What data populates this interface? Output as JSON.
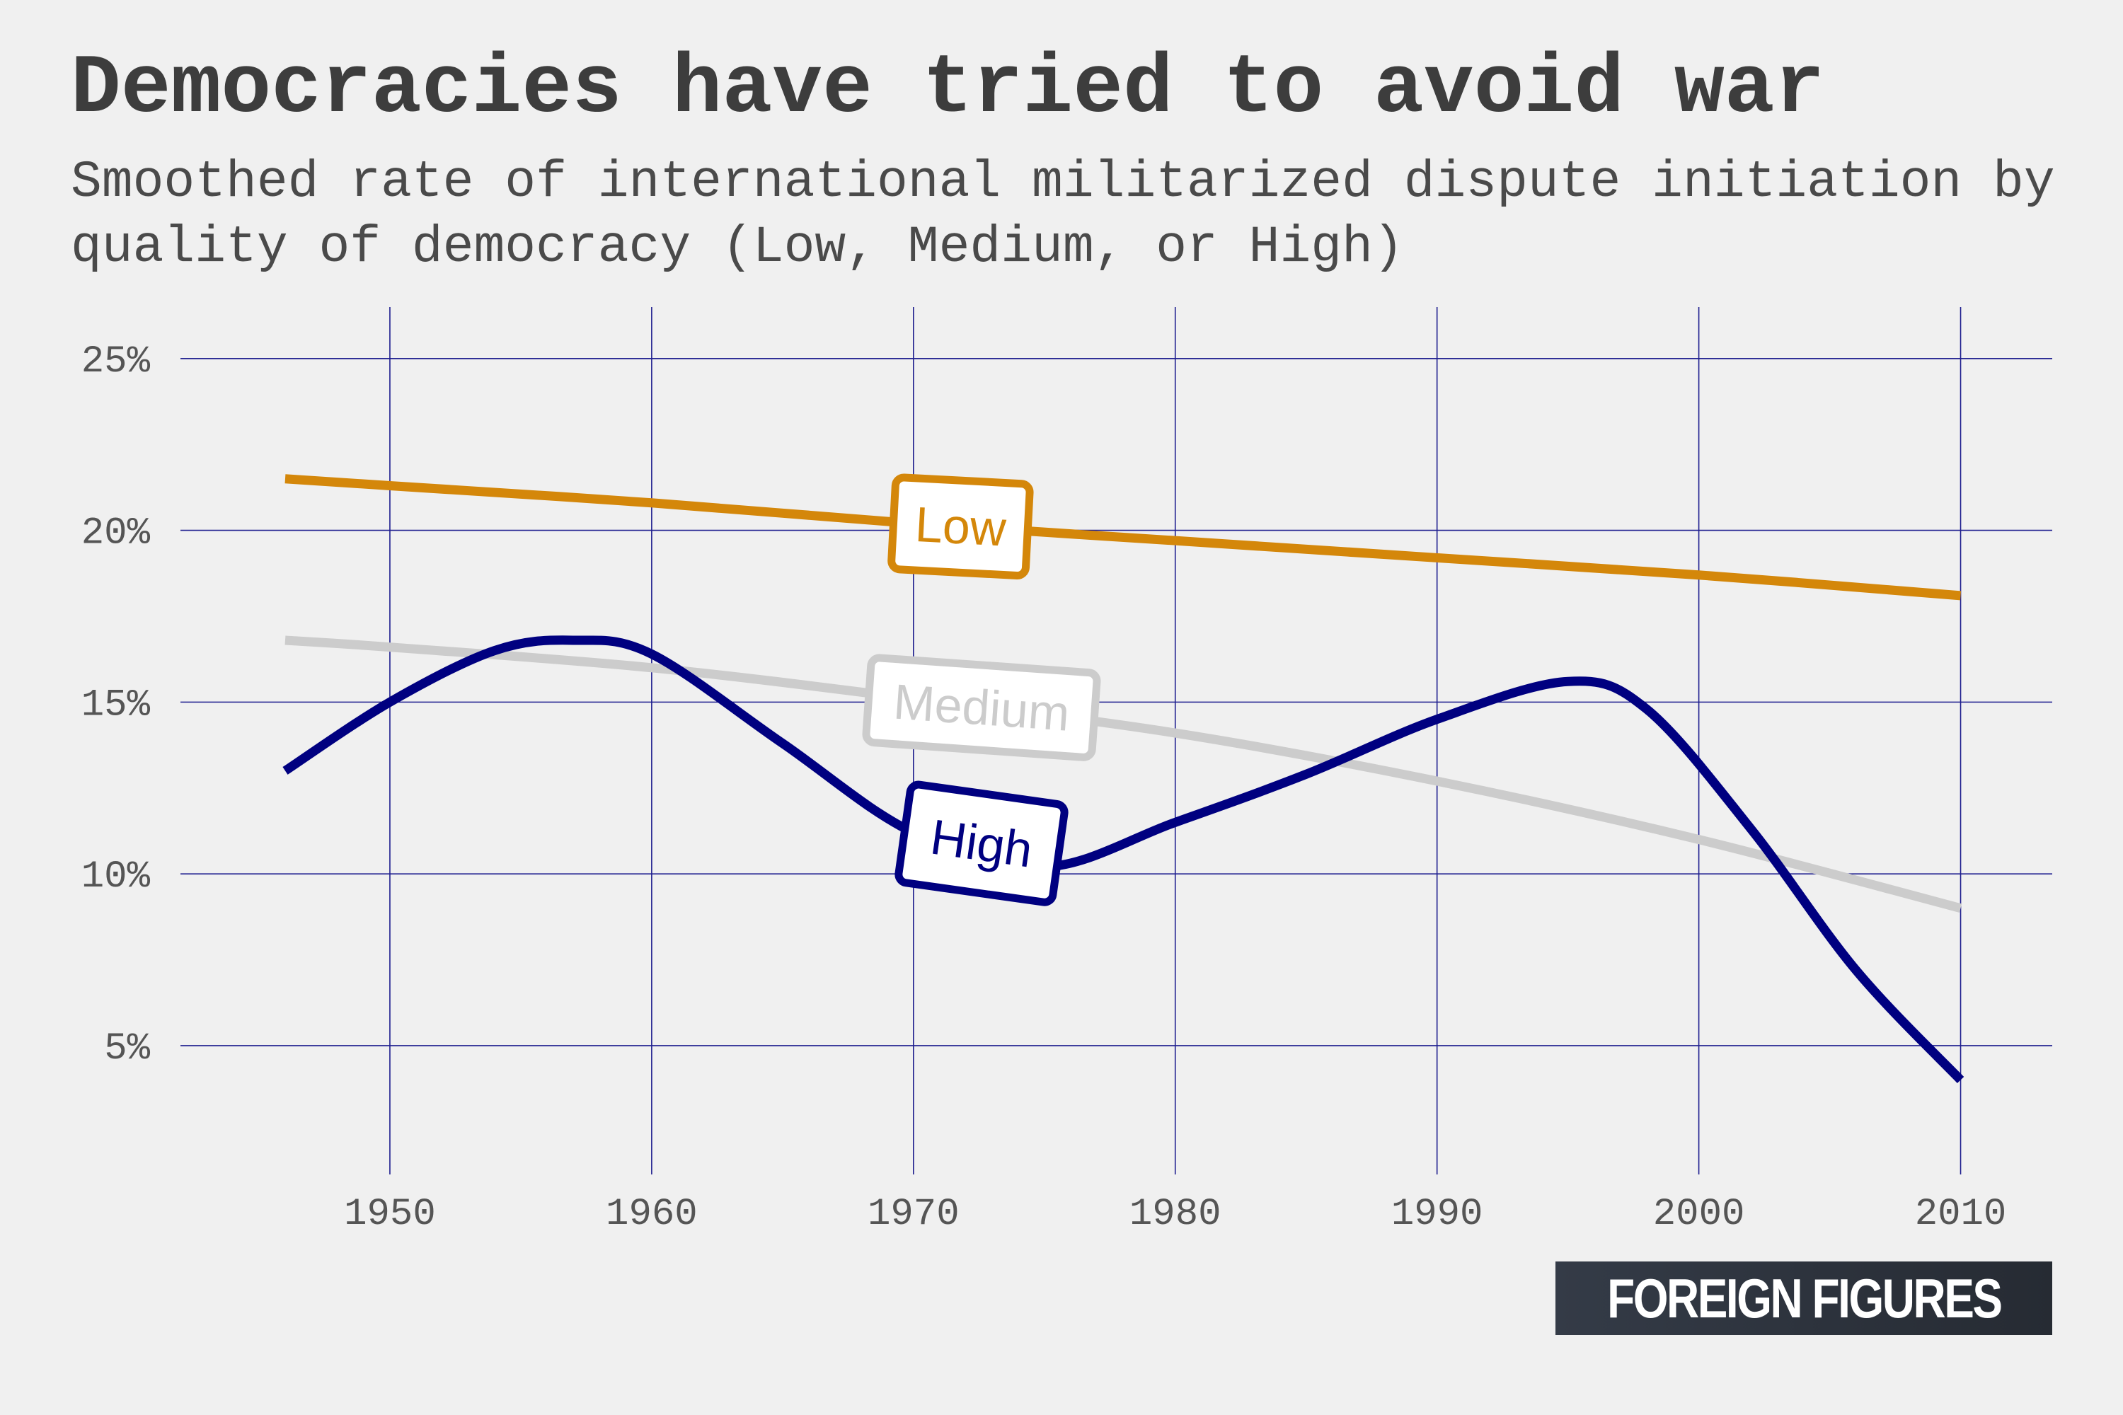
{
  "title": "Democracies have tried to avoid war",
  "subtitle": "Smoothed rate of international militarized dispute initiation by quality of democracy (Low, Medium, or High)",
  "brand": "FOREIGN FIGURES",
  "chart_data": {
    "type": "line",
    "title": "Democracies have tried to avoid war",
    "subtitle": "Smoothed rate of international militarized dispute initiation by quality of democracy (Low, Medium, or High)",
    "xlabel": "",
    "ylabel": "",
    "xlim": [
      1942,
      2013
    ],
    "ylim": [
      1,
      26
    ],
    "x_ticks": [
      1950,
      1960,
      1970,
      1980,
      1990,
      2000,
      2010
    ],
    "x_tick_labels": [
      "1950",
      "1960",
      "1970",
      "1980",
      "1990",
      "2000",
      "2010"
    ],
    "y_ticks": [
      5,
      10,
      15,
      20,
      25
    ],
    "y_tick_labels": [
      "5%",
      "10%",
      "15%",
      "20%",
      "25%"
    ],
    "grid": true,
    "legend": "inline labels on lines",
    "series": [
      {
        "name": "Low",
        "color": "#d4870a",
        "x": [
          1946,
          1950,
          1960,
          1970,
          1980,
          1990,
          2000,
          2010
        ],
        "y": [
          21.5,
          21.3,
          20.8,
          20.2,
          19.7,
          19.2,
          18.7,
          18.1
        ]
      },
      {
        "name": "Medium",
        "color": "#cccccc",
        "x": [
          1946,
          1950,
          1960,
          1970,
          1980,
          1990,
          2000,
          2010
        ],
        "y": [
          16.8,
          16.6,
          16.0,
          15.1,
          14.1,
          12.7,
          11.0,
          9.0
        ]
      },
      {
        "name": "High",
        "color": "#000080",
        "x": [
          1946,
          1950,
          1954,
          1957,
          1960,
          1965,
          1970,
          1975,
          1980,
          1985,
          1990,
          1995,
          1998,
          2002,
          2006,
          2010
        ],
        "y": [
          13.0,
          15.0,
          16.5,
          16.8,
          16.4,
          13.8,
          11.2,
          10.2,
          11.5,
          12.9,
          14.5,
          15.6,
          14.8,
          11.3,
          7.2,
          4.0
        ]
      }
    ]
  }
}
